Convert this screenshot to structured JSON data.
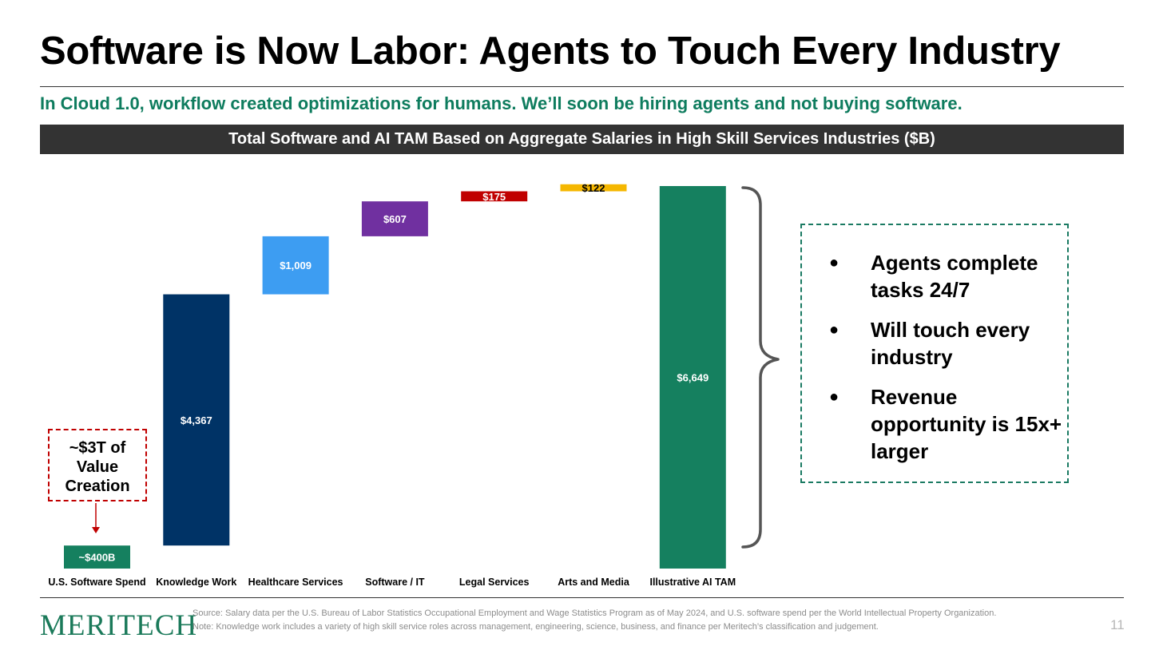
{
  "header": {
    "title": "Software is Now Labor: Agents to Touch Every Industry",
    "subtitle": "In Cloud 1.0, workflow created optimizations for humans. We’ll soon be hiring agents and not buying software."
  },
  "chart_data": {
    "type": "bar",
    "style": "waterfall",
    "title": "Total Software and AI TAM Based on Aggregate Salaries in High Skill Services Industries ($B)",
    "xlabel": "",
    "ylabel": "",
    "categories": [
      "U.S. Software Spend",
      "Knowledge Work",
      "Healthcare Services",
      "Software / IT",
      "Legal Services",
      "Arts and Media",
      "Illustrative AI TAM"
    ],
    "values": [
      400,
      4367,
      1009,
      607,
      175,
      122,
      6649
    ],
    "data_labels": [
      "~$400B",
      "$4,367",
      "$1,009",
      "$607",
      "$175",
      "$122",
      "$6,649"
    ],
    "bar_kinds": [
      "base",
      "increment",
      "increment",
      "increment",
      "increment",
      "increment",
      "total"
    ],
    "colors": [
      "#15805f",
      "#003366",
      "#3d9df2",
      "#7030a0",
      "#c00000",
      "#f5b700",
      "#15805f"
    ],
    "label_colors": [
      "#ffffff",
      "#ffffff",
      "#ffffff",
      "#ffffff",
      "#ffffff",
      "#000000",
      "#ffffff"
    ],
    "ylim": [
      0,
      6649
    ],
    "grid": false,
    "legend": "none"
  },
  "callouts": {
    "value_creation": [
      "~$3T of",
      "Value",
      "Creation"
    ],
    "value_creation_color": "#c00000",
    "bullet_glyph": "●",
    "bullets": [
      "Agents complete tasks 24/7",
      "Will touch every industry",
      "Revenue opportunity is 15x+ larger"
    ],
    "bullets_border_color": "#1a7a62"
  },
  "footer": {
    "logo": "MERITECH",
    "source": "Source: Salary data per the U.S. Bureau of Labor Statistics Occupational Employment and Wage Statistics Program as of May 2024, and U.S. software spend per the World Intellectual Property Organization. Note: Knowledge work includes a variety of high skill service roles across management, engineering, science, business, and finance per Meritech’s classification and judgement.",
    "page_number": "11"
  }
}
